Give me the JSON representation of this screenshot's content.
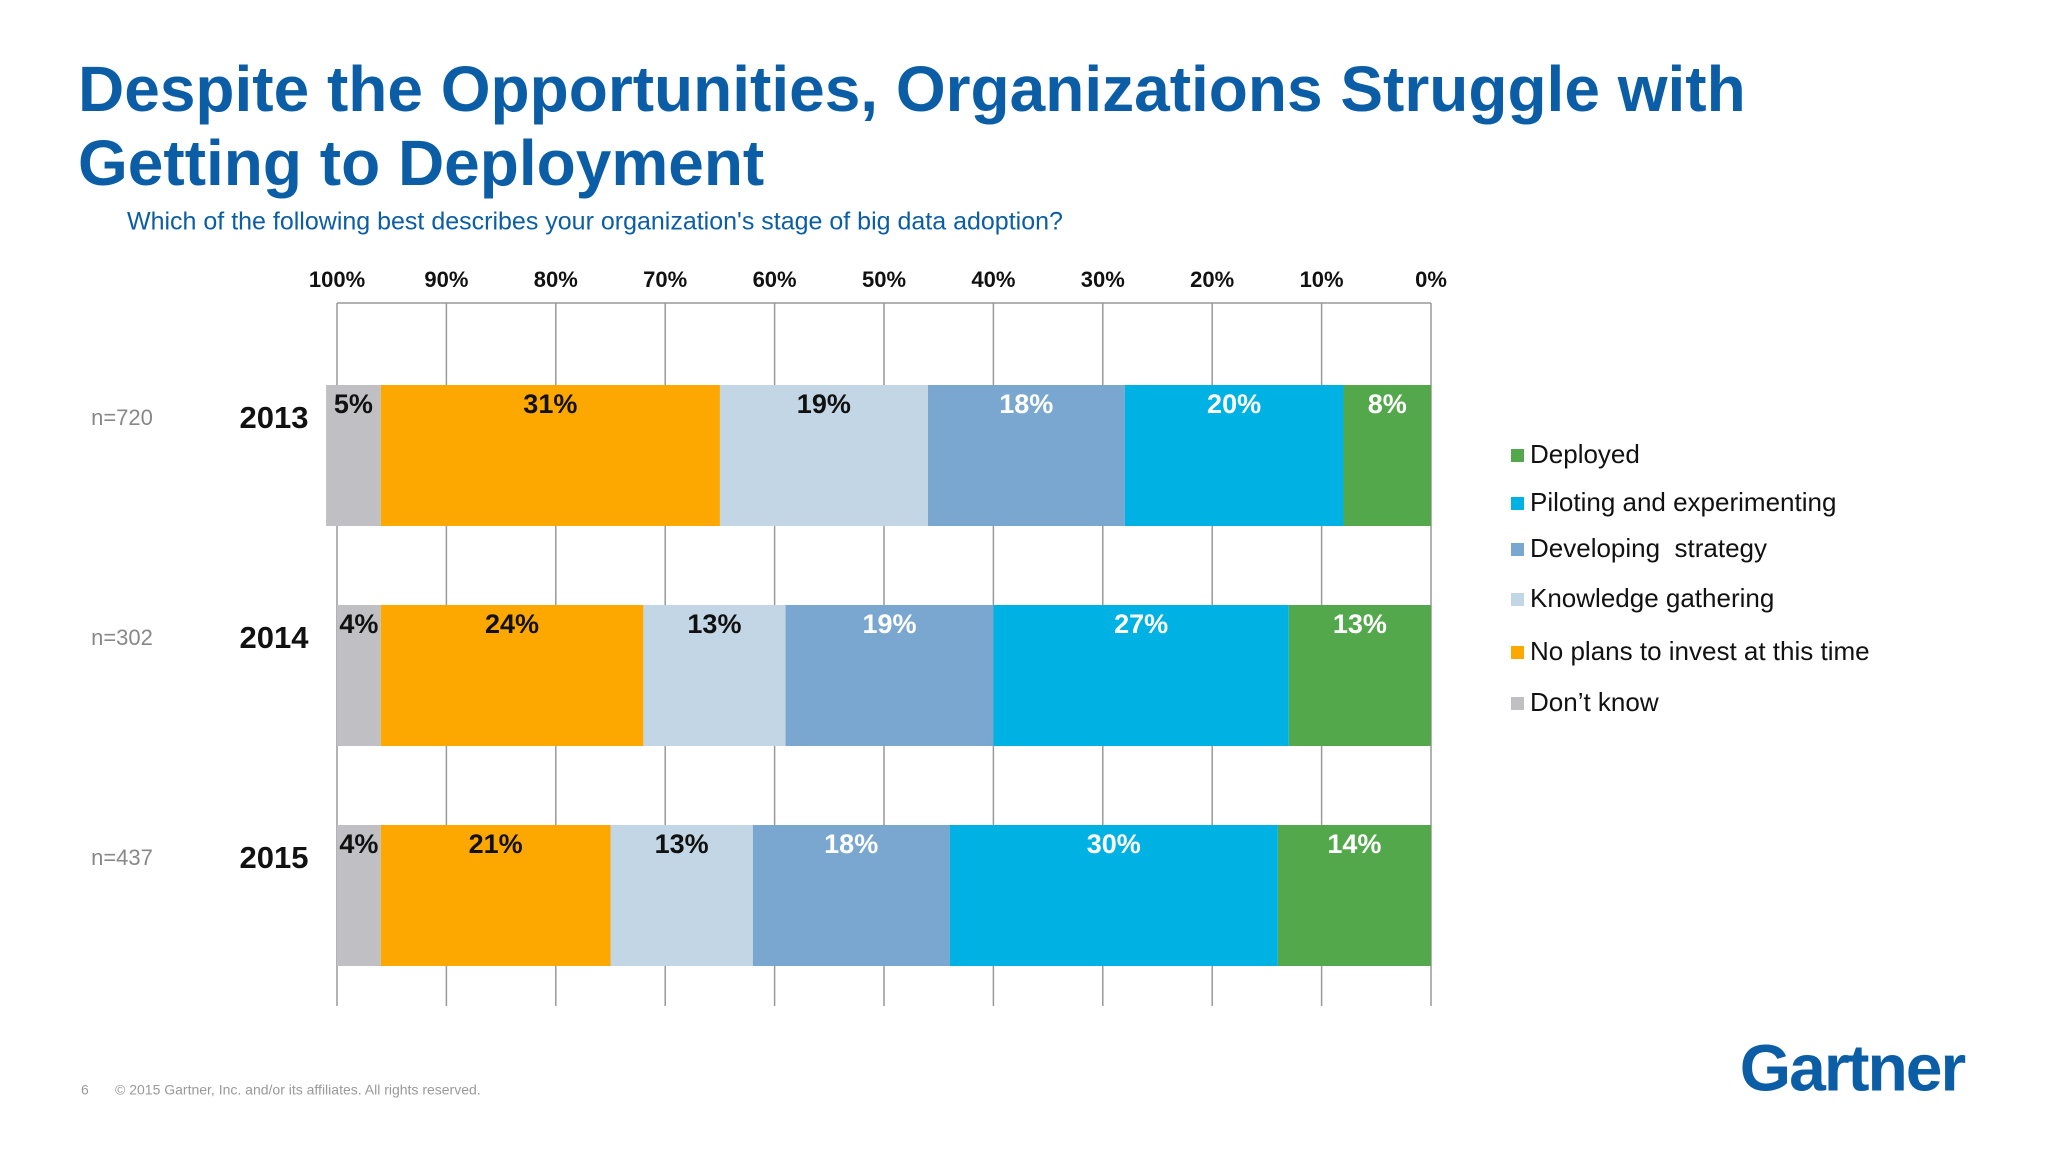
{
  "chart_data": {
    "type": "stacked-bar-horizontal",
    "title": "Despite the Opportunities, Organizations Struggle with Getting to Deployment",
    "subtitle": "Which of the following best describes your organization's stage of big data adoption?",
    "categories": [
      "2013",
      "2014",
      "2015"
    ],
    "sample_sizes": [
      "n=720",
      "n=302",
      "n=437"
    ],
    "xlim": [
      100,
      0
    ],
    "xticks": [
      {
        "value": 100,
        "label": "100%"
      },
      {
        "value": 90,
        "label": "90%"
      },
      {
        "value": 80,
        "label": "80%"
      },
      {
        "value": 70,
        "label": "70%"
      },
      {
        "value": 60,
        "label": "60%"
      },
      {
        "value": 50,
        "label": "50%"
      },
      {
        "value": 40,
        "label": "40%"
      },
      {
        "value": 30,
        "label": "30%"
      },
      {
        "value": 20,
        "label": "20%"
      },
      {
        "value": 10,
        "label": "10%"
      },
      {
        "value": 0,
        "label": "0%"
      }
    ],
    "grid": true,
    "legend": "right",
    "series": [
      {
        "name": "Deployed",
        "color": "#52a84a",
        "label_color": "#ffffff",
        "values": [
          8,
          13,
          14
        ],
        "value_labels": [
          "8%",
          "13%",
          "14%"
        ]
      },
      {
        "name": "Piloting and experimenting",
        "color": "#00b2e3",
        "label_color": "#ffffff",
        "values": [
          20,
          27,
          30
        ],
        "value_labels": [
          "20%",
          "27%",
          "30%"
        ]
      },
      {
        "name": "Developing  strategy",
        "color": "#7aa7cf",
        "label_color": "#ffffff",
        "values": [
          18,
          19,
          18
        ],
        "value_labels": [
          "18%",
          "19%",
          "18%"
        ]
      },
      {
        "name": "Knowledge gathering",
        "color": "#c3d6e5",
        "label_color": "#111111",
        "values": [
          19,
          13,
          13
        ],
        "value_labels": [
          "19%",
          "13%",
          "13%"
        ]
      },
      {
        "name": "No plans to invest at this time",
        "color": "#fda800",
        "label_color": "#111111",
        "values": [
          31,
          24,
          21
        ],
        "value_labels": [
          "31%",
          "24%",
          "21%"
        ]
      },
      {
        "name": "Don’t know",
        "color": "#c0bfc3",
        "label_color": "#111111",
        "values": [
          5,
          4,
          4
        ],
        "value_labels": [
          "5%",
          "4%",
          "4%"
        ]
      }
    ]
  },
  "footer": {
    "page": "6",
    "copyright": "© 2015 Gartner, Inc. and/or its affiliates. All rights reserved.",
    "logo": "Gartner"
  }
}
